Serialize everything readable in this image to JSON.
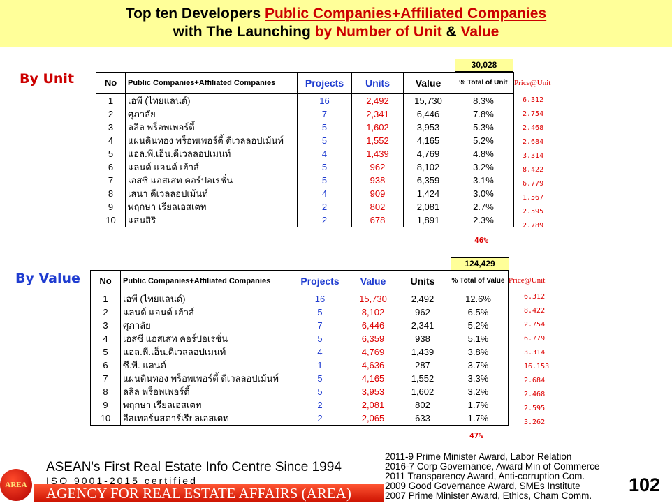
{
  "title": {
    "line1_a": "Top ten Developers ",
    "line1_b": "Public Companies+Affiliated Companies",
    "line2_a": "with The Launching ",
    "line2_b": "by Number of Unit",
    "line2_c": " & ",
    "line2_d": "Value"
  },
  "by_unit": {
    "label": "By Unit",
    "total": "30,028",
    "headers": {
      "no": "No",
      "name": "Public Companies+Affiliated Companies",
      "projects": "Projects",
      "units": "Units",
      "value": "Value",
      "pct": "% Total of Unit"
    },
    "price_header": "Price@Unit",
    "rows": [
      {
        "no": "1",
        "name": "เอพี (ไทยแลนด์)",
        "projects": "16",
        "units": "2,492",
        "value": "15,730",
        "pct": "8.3%",
        "price": "6.312"
      },
      {
        "no": "2",
        "name": "ศุภาลัย",
        "projects": "7",
        "units": "2,341",
        "value": "6,446",
        "pct": "7.8%",
        "price": "2.754"
      },
      {
        "no": "3",
        "name": "ลลิล พร็อพเพอร์ตี้",
        "projects": "5",
        "units": "1,602",
        "value": "3,953",
        "pct": "5.3%",
        "price": "2.468"
      },
      {
        "no": "4",
        "name": "แผ่นดินทอง พร็อพเพอร์ตี้ ดีเวลลอปเม้นท์",
        "projects": "5",
        "units": "1,552",
        "value": "4,165",
        "pct": "5.2%",
        "price": "2.684"
      },
      {
        "no": "5",
        "name": "แอล.พี.เอ็น.ดีเวลลอปเมนท์",
        "projects": "4",
        "units": "1,439",
        "value": "4,769",
        "pct": "4.8%",
        "price": "3.314"
      },
      {
        "no": "6",
        "name": "แลนด์ แอนด์ เฮ้าส์",
        "projects": "5",
        "units": "962",
        "value": "8,102",
        "pct": "3.2%",
        "price": "8.422"
      },
      {
        "no": "7",
        "name": "เอสซี แอสเสท คอร์ปอเรชั่น",
        "projects": "5",
        "units": "938",
        "value": "6,359",
        "pct": "3.1%",
        "price": "6.779"
      },
      {
        "no": "8",
        "name": "เสนา ดีเวลลอปเม้นท์",
        "projects": "4",
        "units": "909",
        "value": "1,424",
        "pct": "3.0%",
        "price": "1.567"
      },
      {
        "no": "9",
        "name": "พฤกษา เรียลเอสเตท",
        "projects": "2",
        "units": "802",
        "value": "2,081",
        "pct": "2.7%",
        "price": "2.595"
      },
      {
        "no": "10",
        "name": "แสนสิริ",
        "projects": "2",
        "units": "678",
        "value": "1,891",
        "pct": "2.3%",
        "price": "2.789"
      }
    ],
    "pct_sum": "46%"
  },
  "by_value": {
    "label": "By Value",
    "total": "124,429",
    "headers": {
      "no": "No",
      "name": "Public Companies+Affiliated Companies",
      "projects": "Projects",
      "value": "Value",
      "units": "Units",
      "pct": "% Total of Value"
    },
    "price_header": "Price@Unit",
    "rows": [
      {
        "no": "1",
        "name": "เอพี (ไทยแลนด์)",
        "projects": "16",
        "value": "15,730",
        "units": "2,492",
        "pct": "12.6%",
        "price": "6.312"
      },
      {
        "no": "2",
        "name": "แลนด์ แอนด์ เฮ้าส์",
        "projects": "5",
        "value": "8,102",
        "units": "962",
        "pct": "6.5%",
        "price": "8.422"
      },
      {
        "no": "3",
        "name": "ศุภาลัย",
        "projects": "7",
        "value": "6,446",
        "units": "2,341",
        "pct": "5.2%",
        "price": "2.754"
      },
      {
        "no": "4",
        "name": "เอสซี แอสเสท คอร์ปอเรชั่น",
        "projects": "5",
        "value": "6,359",
        "units": "938",
        "pct": "5.1%",
        "price": "6.779"
      },
      {
        "no": "5",
        "name": "แอล.พี.เอ็น.ดีเวลลอปเมนท์",
        "projects": "4",
        "value": "4,769",
        "units": "1,439",
        "pct": "3.8%",
        "price": "3.314"
      },
      {
        "no": "6",
        "name": "ซี.พี. แลนด์",
        "projects": "1",
        "value": "4,636",
        "units": "287",
        "pct": "3.7%",
        "price": "16.153"
      },
      {
        "no": "7",
        "name": "แผ่นดินทอง พร็อพเพอร์ตี้ ดีเวลลอปเม้นท์",
        "projects": "5",
        "value": "4,165",
        "units": "1,552",
        "pct": "3.3%",
        "price": "2.684"
      },
      {
        "no": "8",
        "name": "ลลิล พร็อพเพอร์ตี้",
        "projects": "5",
        "value": "3,953",
        "units": "1,602",
        "pct": "3.2%",
        "price": "2.468"
      },
      {
        "no": "9",
        "name": "พฤกษา เรียลเอสเตท",
        "projects": "2",
        "value": "2,081",
        "units": "802",
        "pct": "1.7%",
        "price": "2.595"
      },
      {
        "no": "10",
        "name": "อีสเทอร์นสตาร์เรียลเอสเตท",
        "projects": "2",
        "value": "2,065",
        "units": "633",
        "pct": "1.7%",
        "price": "3.262"
      }
    ],
    "pct_sum": "47%"
  },
  "footer": {
    "logo_text": "AREA",
    "line1": "ASEAN's First Real Estate Info Centre Since 1994",
    "line2": "ISO 9001-2015 certified",
    "line3": "AGENCY FOR REAL ESTATE AFFAIRS (AREA)",
    "awards": [
      "2011-9 Prime Minister Award, Labor Relation",
      "2016-7 Corp Governance, Award Min of Commerce",
      "2011 Transparency Award, Anti-corruption Com.",
      "2009 Good Governance Award, SMEs Institute",
      "2007 Prime Minister Award, Ethics, Cham Comm."
    ],
    "page_number": "102"
  },
  "colors": {
    "banner": "#ffff99",
    "accent_red": "#cc0000",
    "blue": "#1f3cd0"
  }
}
